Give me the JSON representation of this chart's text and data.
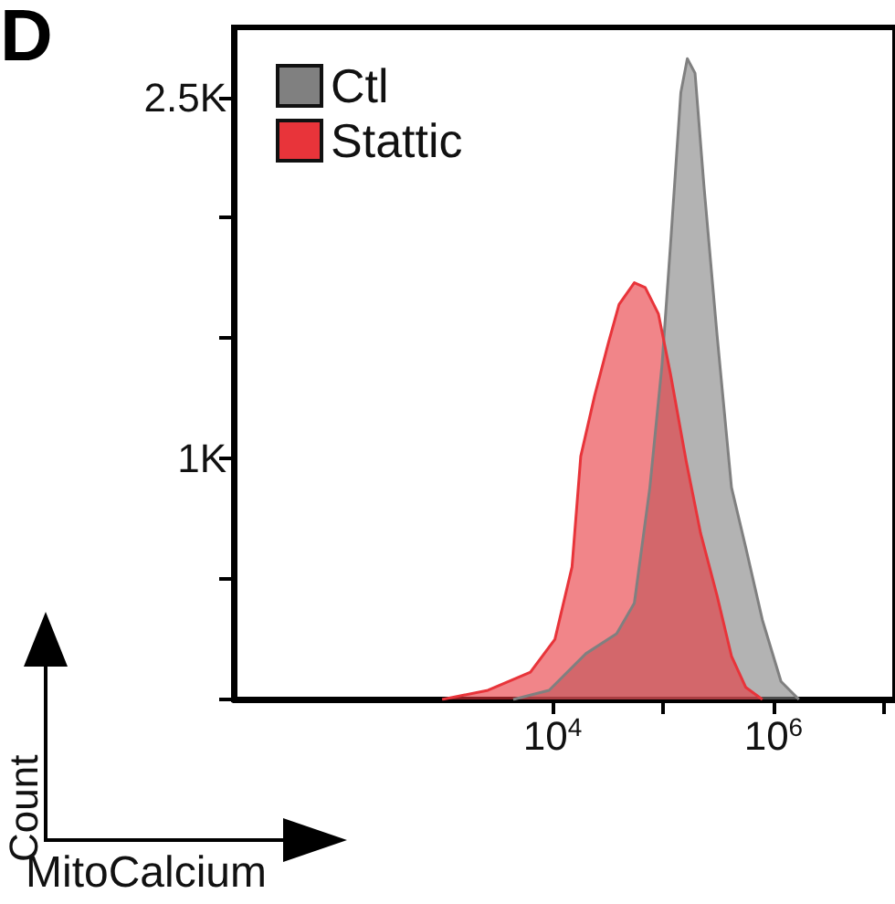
{
  "chart_data": {
    "type": "area",
    "xlabel": "MitoCalcium",
    "ylabel": "Count",
    "annotations": [
      "D"
    ],
    "log": "x",
    "legend": "top left",
    "grid": false,
    "xlim": [
      13,
      12600000
    ],
    "ylim": [
      0,
      2790
    ],
    "xticks": [
      {
        "value": 10000,
        "label": "10$^{4}$"
      },
      {
        "value": 100000,
        "label": null
      },
      {
        "value": 1000000,
        "label": "10$^{6}$"
      },
      {
        "value": 10000000,
        "label": null
      }
    ],
    "yticks": [
      {
        "value": 0,
        "label": null
      },
      {
        "value": 500,
        "label": null
      },
      {
        "value": 1000,
        "label": "1K"
      },
      {
        "value": 1500,
        "label": null
      },
      {
        "value": 2000,
        "label": null
      },
      {
        "value": 2500,
        "label": "2.5K"
      }
    ],
    "series": [
      {
        "name": "Ctl",
        "color": "#808080",
        "x": [
          4400,
          9300,
          20000,
          38000,
          55000,
          76000,
          98000,
          117000,
          145000,
          166000,
          195000,
          234000,
          309000,
          417000,
          562000,
          794000,
          1170000,
          1700000
        ],
        "values": [
          0,
          38,
          190,
          273,
          400,
          880,
          1390,
          1890,
          2520,
          2660,
          2600,
          2140,
          1510,
          880,
          630,
          330,
          75,
          0
        ]
      },
      {
        "name": "Stattic",
        "color": "#e8343a",
        "x": [
          1000,
          2600,
          6300,
          10500,
          15000,
          18000,
          24000,
          32000,
          40000,
          55000,
          69000,
          91000,
          117000,
          162000,
          219000,
          309000,
          417000,
          562000,
          794000
        ],
        "values": [
          0,
          38,
          113,
          250,
          550,
          1010,
          1260,
          1480,
          1640,
          1730,
          1710,
          1600,
          1350,
          990,
          690,
          430,
          180,
          50,
          0
        ]
      }
    ]
  }
}
